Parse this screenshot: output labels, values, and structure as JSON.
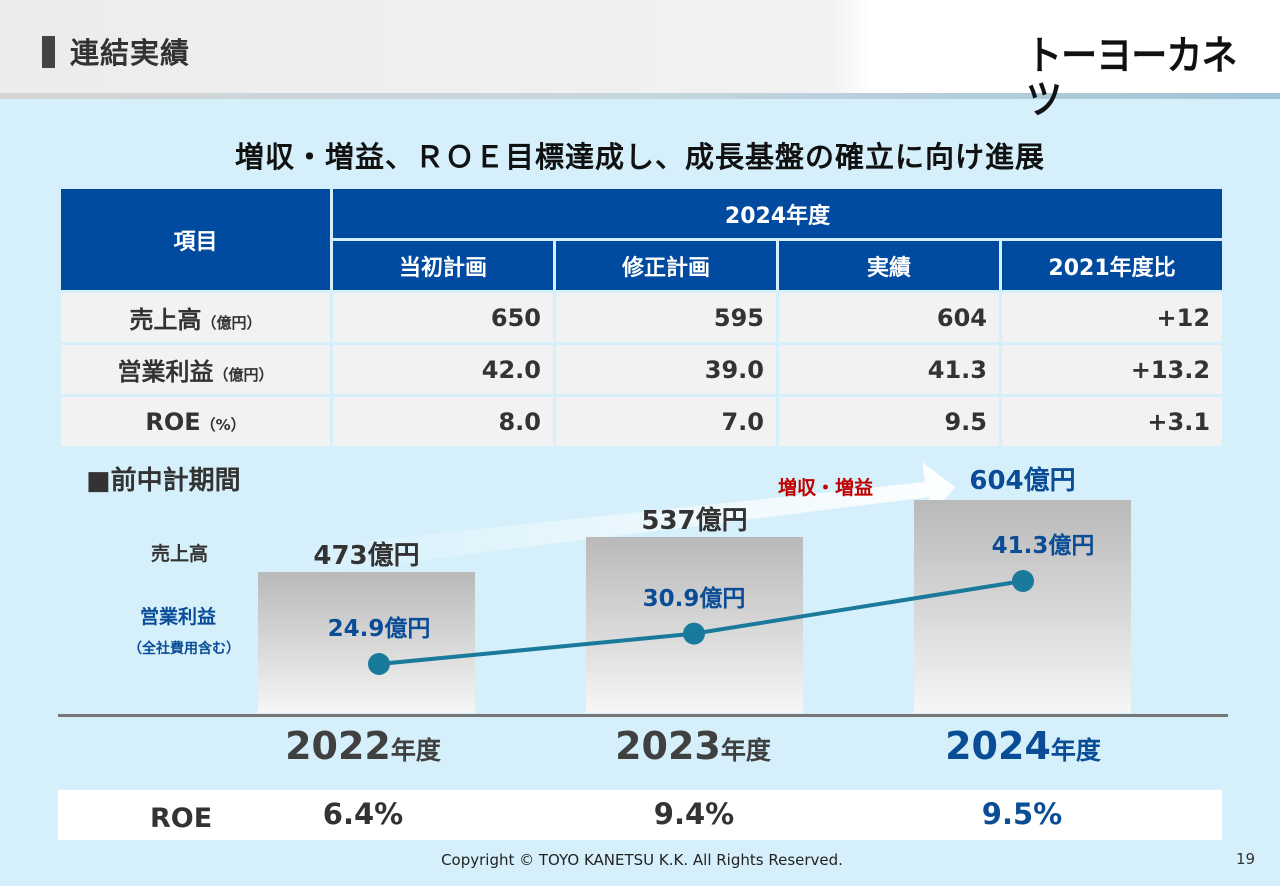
{
  "header": {
    "title": "連結実績",
    "logo": "トーヨーカネツ"
  },
  "headline": "増収・増益、ＲＯＥ目標達成し、成長基盤の確立に向け進展",
  "table": {
    "item_header": "項目",
    "period_header": "2024年度",
    "columns": [
      "当初計画",
      "修正計画",
      "実績",
      "2021年度比"
    ],
    "rows": [
      {
        "label": "売上高",
        "unit": "（億円）",
        "values": [
          "650",
          "595",
          "604",
          "+12"
        ]
      },
      {
        "label": "営業利益",
        "unit": "（億円）",
        "values": [
          "42.0",
          "39.0",
          "41.3",
          "+13.2"
        ]
      },
      {
        "label": "ROE",
        "unit": "（%）",
        "values": [
          "8.0",
          "7.0",
          "9.5",
          "+3.1"
        ]
      }
    ]
  },
  "chart_section": {
    "label": "■前中計期間",
    "sales_label": "売上高",
    "op_label": "営業利益",
    "op_sub": "（全社費用含む）",
    "growth_text": "増収・増益",
    "roe_label": "ROE"
  },
  "chart_data": {
    "type": "bar",
    "categories": [
      "2022年度",
      "2023年度",
      "2024年度"
    ],
    "series": [
      {
        "name": "売上高",
        "type": "bar",
        "unit": "億円",
        "values": [
          473,
          537,
          604
        ],
        "labels": [
          "473億円",
          "537億円",
          "604億円"
        ]
      },
      {
        "name": "営業利益",
        "type": "line",
        "unit": "億円",
        "values": [
          24.9,
          30.9,
          41.3
        ],
        "labels": [
          "24.9億円",
          "30.9億円",
          "41.3億円"
        ]
      }
    ],
    "roe": [
      "6.4%",
      "9.4%",
      "9.5%"
    ],
    "year_numbers": [
      "2022",
      "2023",
      "2024"
    ],
    "year_suffix": "年度",
    "colors": {
      "bar": "#c8c8c8",
      "line": "#1a7a9c",
      "marker": "#1a7a9c",
      "highlight": "#0a4d96",
      "growth": "#c00000"
    }
  },
  "footer": {
    "copyright": "Copyright © TOYO KANETSU K.K. All Rights Reserved.",
    "page": "19"
  }
}
